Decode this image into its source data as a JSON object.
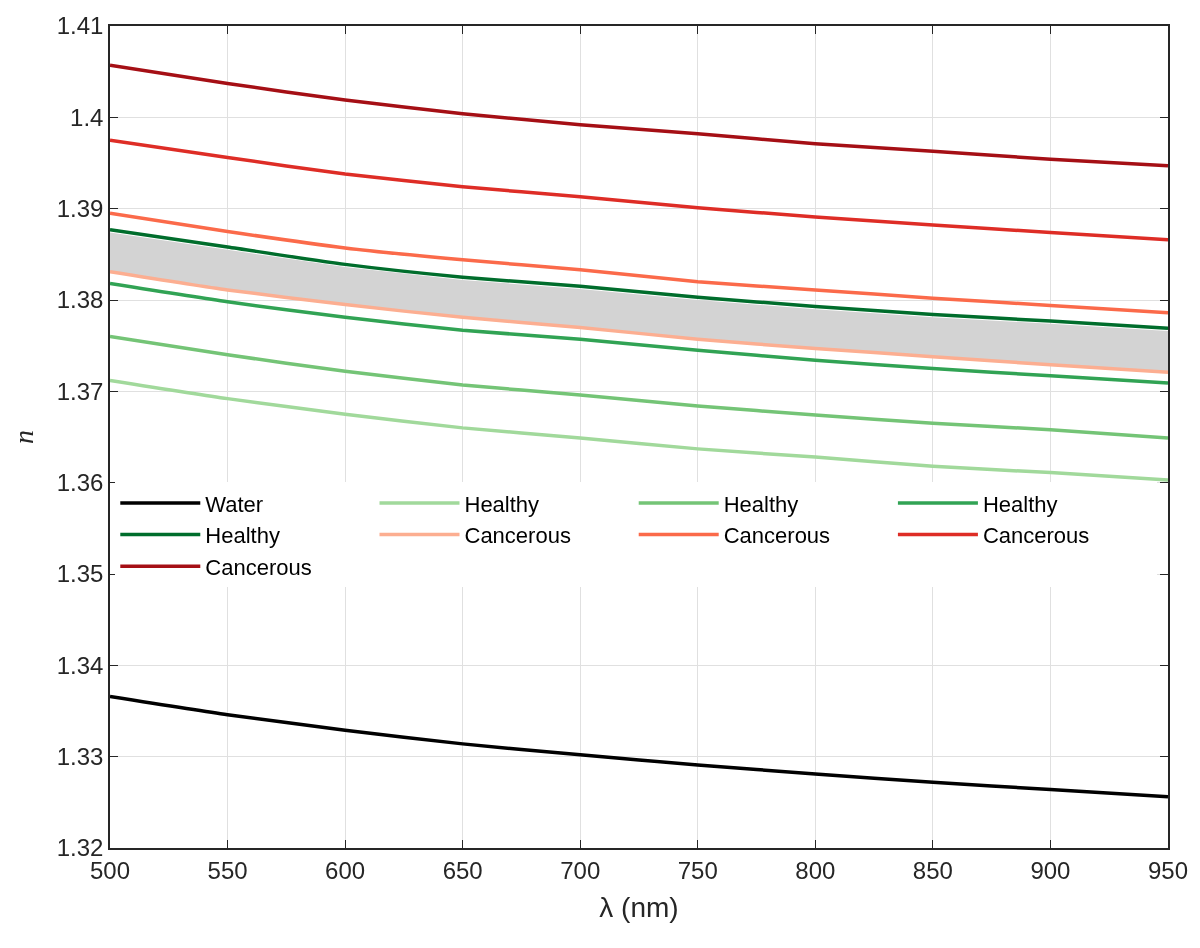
{
  "chart_data": {
    "type": "line",
    "xlabel": "λ (nm)",
    "ylabel": "n",
    "x": [
      500,
      550,
      600,
      650,
      700,
      750,
      800,
      850,
      900,
      950
    ],
    "series": [
      {
        "name": "Water",
        "color": "#000000",
        "values": [
          1.3366,
          1.3346,
          1.3329,
          1.3314,
          1.3302,
          1.3291,
          1.3281,
          1.3272,
          1.3264,
          1.3256
        ]
      },
      {
        "name": "Healthy",
        "color": "#a1d99b",
        "values": [
          1.3712,
          1.3692,
          1.3675,
          1.366,
          1.3649,
          1.3637,
          1.3628,
          1.3618,
          1.3611,
          1.3603
        ]
      },
      {
        "name": "Healthy",
        "color": "#74c476",
        "values": [
          1.376,
          1.374,
          1.3722,
          1.3707,
          1.3696,
          1.3684,
          1.3674,
          1.3665,
          1.3658,
          1.3649
        ]
      },
      {
        "name": "Healthy",
        "color": "#31a354",
        "values": [
          1.3818,
          1.3798,
          1.3781,
          1.3767,
          1.3757,
          1.3745,
          1.3734,
          1.3725,
          1.3717,
          1.3709
        ]
      },
      {
        "name": "Healthy",
        "color": "#006d2c",
        "values": [
          1.3877,
          1.3858,
          1.3839,
          1.3825,
          1.3815,
          1.3803,
          1.3793,
          1.3784,
          1.3777,
          1.3769
        ],
        "lower": [
          1.3831,
          1.3811,
          1.3795,
          1.3781,
          1.377,
          1.3757,
          1.3747,
          1.3738,
          1.3729,
          1.3721
        ],
        "upper": [
          1.3874,
          1.3855,
          1.3836,
          1.3822,
          1.3812,
          1.38,
          1.379,
          1.3781,
          1.3774,
          1.3766
        ]
      },
      {
        "name": "Cancerous",
        "color": "#fcae91",
        "values": [
          1.3831,
          1.3811,
          1.3795,
          1.3781,
          1.377,
          1.3757,
          1.3747,
          1.3738,
          1.3729,
          1.3721
        ]
      },
      {
        "name": "Cancerous",
        "color": "#fb6a4a",
        "values": [
          1.3895,
          1.3875,
          1.3857,
          1.3844,
          1.3833,
          1.382,
          1.3811,
          1.3802,
          1.3794,
          1.3786
        ]
      },
      {
        "name": "Cancerous",
        "color": "#de2d26",
        "values": [
          1.3975,
          1.3956,
          1.3938,
          1.3924,
          1.3913,
          1.3901,
          1.3891,
          1.3882,
          1.3874,
          1.3866
        ]
      },
      {
        "name": "Cancerous",
        "color": "#a50f15",
        "values": [
          1.4057,
          1.4037,
          1.4019,
          1.4004,
          1.3992,
          1.3982,
          1.3971,
          1.3963,
          1.3954,
          1.3947
        ]
      }
    ],
    "xlim": [
      500,
      950
    ],
    "xticks": [
      500,
      550,
      600,
      650,
      700,
      750,
      800,
      850,
      900,
      950
    ],
    "ylim": [
      1.32,
      1.41
    ],
    "yticks": [
      1.32,
      1.33,
      1.34,
      1.35,
      1.36,
      1.37,
      1.38,
      1.39,
      {
        "value": 1.4,
        "label": "1.4"
      },
      1.41
    ],
    "grid": true,
    "legend": "left",
    "marker": "none",
    "line_style": "solid"
  }
}
